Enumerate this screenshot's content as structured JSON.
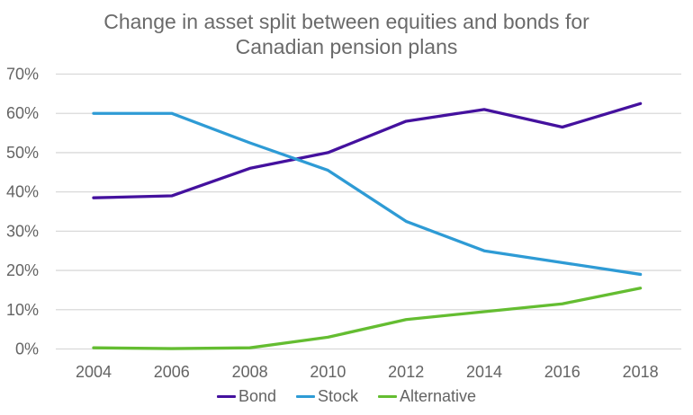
{
  "title": "Change in asset split between equities and bonds for Canadian pension plans",
  "title_lines": [
    "Change in asset split between equities and bonds for",
    "Canadian pension plans"
  ],
  "chart_data": {
    "type": "line",
    "title": "Change in asset split between equities and bonds for Canadian pension plans",
    "categories": [
      "2004",
      "2006",
      "2008",
      "2010",
      "2012",
      "2014",
      "2016",
      "2018"
    ],
    "series": [
      {
        "name": "Bond",
        "color": "#44119e",
        "values": [
          38.5,
          39,
          46,
          50,
          58,
          61,
          56.5,
          62.5
        ]
      },
      {
        "name": "Stock",
        "color": "#2e9bd5",
        "values": [
          60,
          60,
          52.5,
          45.5,
          32.5,
          25,
          22,
          19
        ]
      },
      {
        "name": "Alternative",
        "color": "#64bd31",
        "values": [
          0.3,
          0.1,
          0.3,
          3,
          7.5,
          9.5,
          11.5,
          15.5
        ]
      }
    ],
    "y_axis": {
      "min": 0,
      "max": 70,
      "step": 10,
      "tick_labels": [
        "0%",
        "10%",
        "20%",
        "30%",
        "40%",
        "50%",
        "60%",
        "70%"
      ]
    },
    "x_axis": {
      "tick_labels": [
        "2004",
        "2006",
        "2008",
        "2010",
        "2012",
        "2014",
        "2016",
        "2018"
      ]
    },
    "grid": true,
    "legend_position": "bottom"
  },
  "colors": {
    "background": "#ffffff",
    "gridline": "#d9d9d9",
    "title_text": "#6a6a6a",
    "axis_text": "#646464",
    "legend_text": "#646464"
  }
}
